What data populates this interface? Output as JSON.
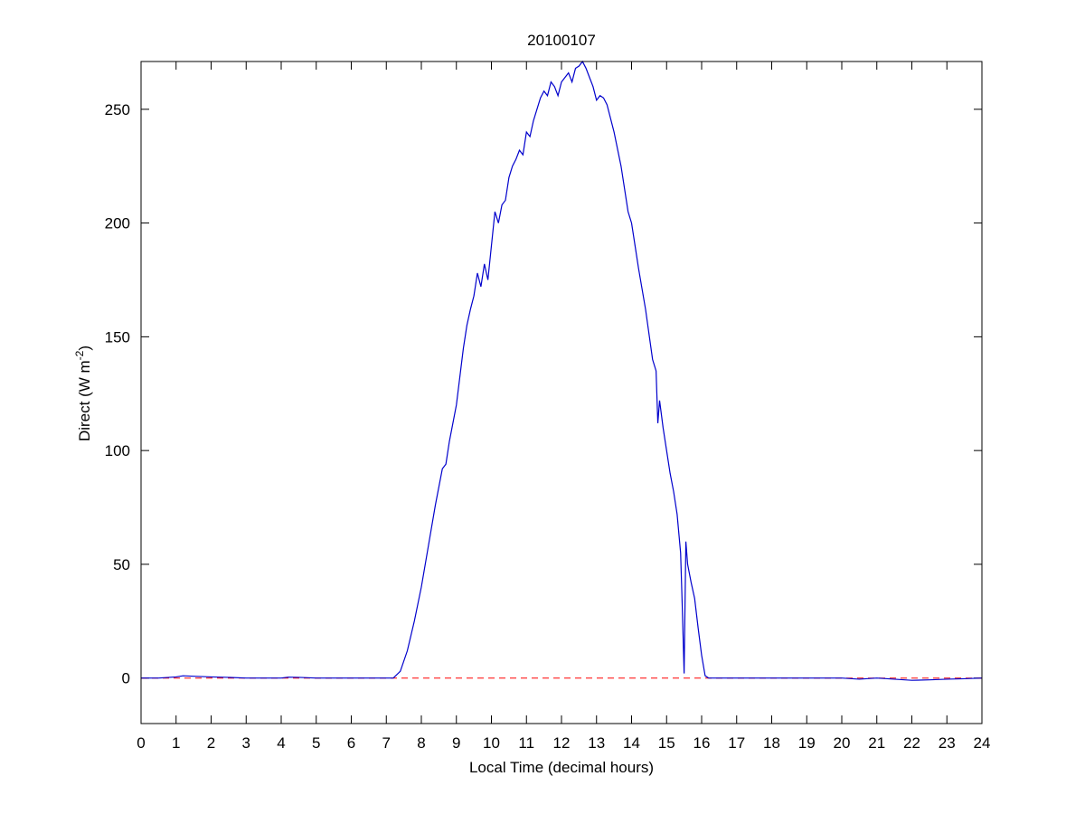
{
  "chart_data": {
    "type": "line",
    "title": "20100107",
    "xlabel": "Local Time (decimal hours)",
    "ylabel": [
      "Direct (W m",
      "-2",
      ")"
    ],
    "xlim": [
      0,
      24
    ],
    "xticks": [
      0,
      1,
      2,
      3,
      4,
      5,
      6,
      7,
      8,
      9,
      10,
      11,
      12,
      13,
      14,
      15,
      16,
      17,
      18,
      19,
      20,
      21,
      22,
      23,
      24
    ],
    "ylim": [
      -20,
      271
    ],
    "yticks": [
      0,
      50,
      100,
      150,
      200,
      250
    ],
    "grid": false,
    "reference_line": {
      "y": 0,
      "color": "#ff0000",
      "style": "dashed"
    },
    "series": [
      {
        "name": "Direct",
        "color": "#0000cc",
        "x": [
          0,
          0.5,
          1,
          1.2,
          1.5,
          2,
          2.5,
          3,
          4,
          4.2,
          4.5,
          5,
          6,
          7,
          7.2,
          7.4,
          7.6,
          7.8,
          8,
          8.2,
          8.4,
          8.6,
          8.7,
          8.8,
          9,
          9.2,
          9.3,
          9.4,
          9.5,
          9.6,
          9.7,
          9.8,
          9.9,
          10,
          10.1,
          10.2,
          10.3,
          10.4,
          10.5,
          10.6,
          10.7,
          10.8,
          10.9,
          11,
          11.1,
          11.2,
          11.3,
          11.4,
          11.5,
          11.6,
          11.7,
          11.8,
          11.9,
          12,
          12.1,
          12.2,
          12.3,
          12.4,
          12.5,
          12.6,
          12.7,
          12.8,
          12.9,
          13,
          13.1,
          13.2,
          13.3,
          13.5,
          13.7,
          13.9,
          14,
          14.1,
          14.2,
          14.4,
          14.6,
          14.7,
          14.75,
          14.8,
          14.9,
          15,
          15.1,
          15.2,
          15.3,
          15.4,
          15.45,
          15.5,
          15.55,
          15.6,
          15.7,
          15.8,
          15.9,
          16,
          16.1,
          16.2,
          17,
          18,
          19,
          20,
          20.5,
          21,
          22,
          22.5,
          23,
          23.5,
          24
        ],
        "values": [
          0,
          0,
          0.5,
          1,
          0.8,
          0.5,
          0.3,
          0,
          0,
          0.4,
          0.3,
          0,
          0,
          0,
          0,
          3,
          12,
          25,
          40,
          58,
          76,
          92,
          94,
          104,
          120,
          145,
          155,
          162,
          168,
          178,
          172,
          182,
          175,
          190,
          205,
          200,
          208,
          210,
          220,
          225,
          228,
          232,
          230,
          240,
          238,
          245,
          250,
          255,
          258,
          256,
          262,
          260,
          256,
          262,
          264,
          266,
          262,
          268,
          269,
          271,
          268,
          264,
          260,
          254,
          256,
          255,
          252,
          240,
          225,
          205,
          200,
          190,
          180,
          162,
          140,
          135,
          112,
          122,
          110,
          100,
          90,
          82,
          72,
          55,
          30,
          2,
          60,
          50,
          42,
          35,
          22,
          10,
          1,
          0,
          0,
          0,
          0,
          0,
          -0.5,
          0,
          -1,
          -0.8,
          -0.5,
          -0.3,
          0
        ]
      }
    ]
  }
}
